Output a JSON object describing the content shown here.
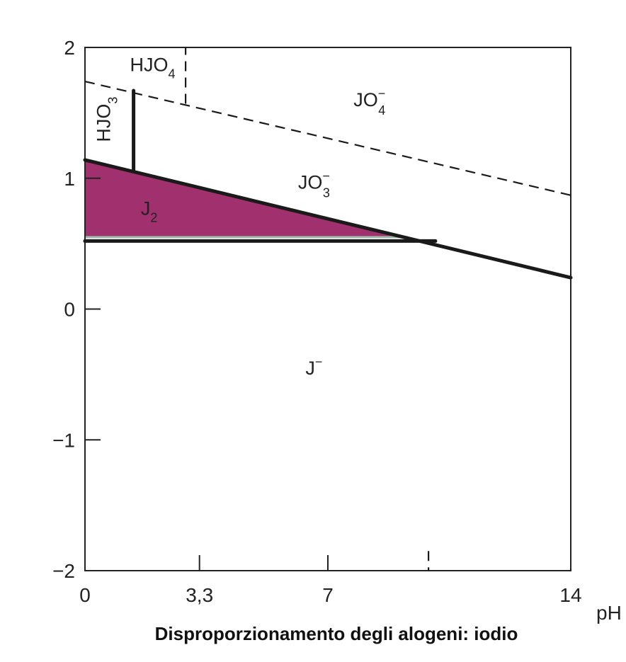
{
  "chart_data": {
    "type": "area",
    "title": "Disproporzionamento degli alogeni: iodio",
    "xlabel": "pH",
    "ylabel": "",
    "xlim": [
      0,
      14
    ],
    "ylim": [
      -2,
      2
    ],
    "x_ticks": [
      {
        "value": 0,
        "label": "0"
      },
      {
        "value": 3.3,
        "label": "3,3"
      },
      {
        "value": 7,
        "label": "7"
      },
      {
        "value": 14,
        "label": "14"
      }
    ],
    "y_ticks": [
      {
        "value": 2,
        "label": "2"
      },
      {
        "value": 1,
        "label": "1"
      },
      {
        "value": 0,
        "label": "0"
      },
      {
        "value": -1,
        "label": "−1"
      },
      {
        "value": -2,
        "label": "−2"
      }
    ],
    "boundaries": [
      {
        "id": "jo3-j-line",
        "style": "solid",
        "points": [
          [
            0,
            1.14
          ],
          [
            14,
            0.24
          ]
        ]
      },
      {
        "id": "j2-j-line",
        "style": "solid",
        "points": [
          [
            0,
            0.52
          ],
          [
            10.1,
            0.52
          ]
        ]
      },
      {
        "id": "hjo3-jo3-line",
        "style": "solid",
        "points": [
          [
            1.4,
            1.05
          ],
          [
            1.4,
            1.67
          ]
        ]
      },
      {
        "id": "jo4-jo3-line",
        "style": "dashed",
        "points": [
          [
            0,
            1.74
          ],
          [
            14,
            0.87
          ]
        ]
      },
      {
        "id": "hjo4-jo4-line",
        "style": "dashed",
        "points": [
          [
            2.9,
            1.57
          ],
          [
            2.9,
            2.0
          ]
        ]
      },
      {
        "id": "lower-dashed-line",
        "style": "dashed",
        "points": [
          [
            9.9,
            -1.85
          ],
          [
            9.9,
            -2.0
          ]
        ]
      }
    ],
    "regions": [
      {
        "id": "j2",
        "base": "J",
        "sub": "2",
        "sup": "",
        "x": 1.85,
        "y": 0.72
      },
      {
        "id": "j-minus",
        "base": "J",
        "sub": "",
        "sup": "−",
        "x": 6.6,
        "y": -0.5
      },
      {
        "id": "jo3-minus",
        "base": "JO",
        "sub": "3",
        "sup": "−",
        "x": 6.6,
        "y": 0.92
      },
      {
        "id": "jo4-minus",
        "base": "JO",
        "sub": "4",
        "sup": "−",
        "x": 8.2,
        "y": 1.55
      },
      {
        "id": "hjo4",
        "base": "HJO",
        "sub": "4",
        "sup": "",
        "x": 1.95,
        "y": 1.82
      },
      {
        "id": "hjo3",
        "base": "HJO",
        "sub": "3",
        "sup": "",
        "x": 0.72,
        "y": 1.45,
        "rotate": -90
      }
    ],
    "shaded_region": {
      "id": "j2-area",
      "color": "#a0306e",
      "points": [
        [
          0,
          1.14
        ],
        [
          9.3,
          0.55
        ],
        [
          0,
          0.55
        ]
      ]
    },
    "colors": {
      "frame": "#222222",
      "boundary": "#1a1a1a",
      "shade": "#a0306e",
      "shade_edge": "#9bb8a8"
    }
  }
}
